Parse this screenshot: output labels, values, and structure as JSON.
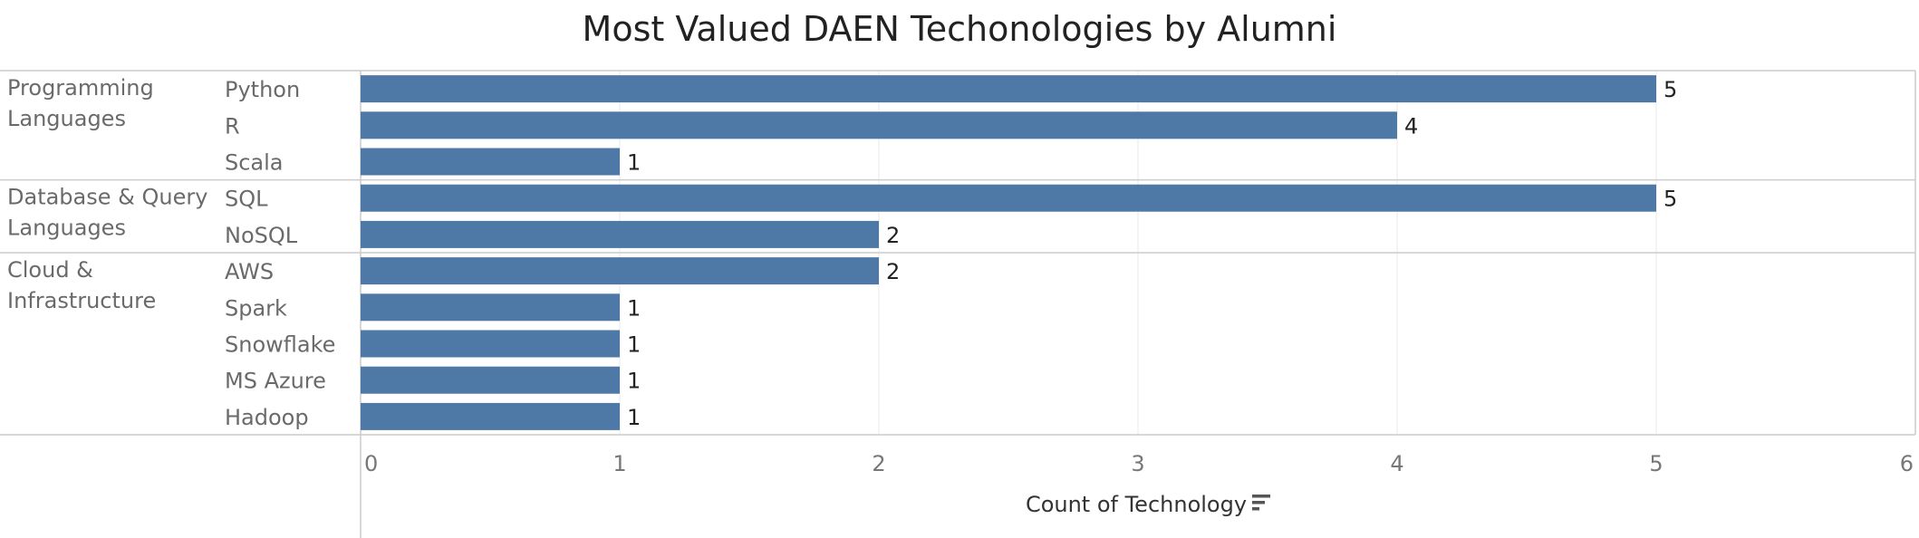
{
  "colors": {
    "bar": "#4e79a7",
    "grid": "#e9e9e9",
    "border": "#cccccc"
  },
  "icons": {
    "sort": "sort-descending-icon"
  },
  "chart_data": {
    "type": "bar",
    "orientation": "horizontal",
    "title": "Most Valued DAEN Techonologies by Alumni",
    "xlabel": "Count of Technology",
    "ylabel": "",
    "xlim": [
      0,
      6
    ],
    "ticks": [
      0,
      1,
      2,
      3,
      4,
      5,
      6
    ],
    "grid": true,
    "groups": [
      {
        "name": [
          "Programming",
          "Languages"
        ],
        "categories": [
          "Python",
          "R",
          "Scala"
        ],
        "values": [
          5,
          4,
          1
        ]
      },
      {
        "name": [
          "Database & Query",
          "Languages"
        ],
        "categories": [
          "SQL",
          "NoSQL"
        ],
        "values": [
          5,
          2
        ]
      },
      {
        "name": [
          "Cloud &",
          "Infrastructure"
        ],
        "categories": [
          "AWS",
          "Spark",
          "Snowflake",
          "MS Azure",
          "Hadoop"
        ],
        "values": [
          2,
          1,
          1,
          1,
          1
        ]
      }
    ]
  }
}
